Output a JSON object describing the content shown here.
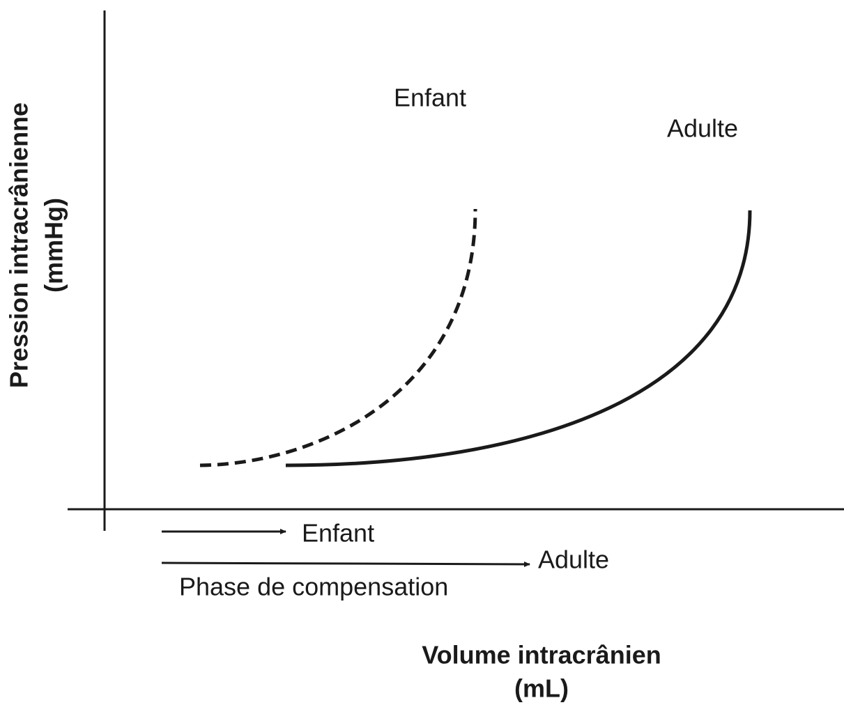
{
  "y_axis": {
    "label": [
      "Pression intracrânienne",
      "(mmHg)"
    ]
  },
  "x_axis": {
    "label": [
      "Volume intracrânien",
      "(mL)"
    ]
  },
  "curves": [
    {
      "label": "Enfant"
    },
    {
      "label": "Adulte"
    }
  ],
  "compensation": {
    "arrows": [
      {
        "label": "Enfant"
      },
      {
        "label": "Adulte"
      }
    ],
    "label": "Phase de compensation"
  }
}
